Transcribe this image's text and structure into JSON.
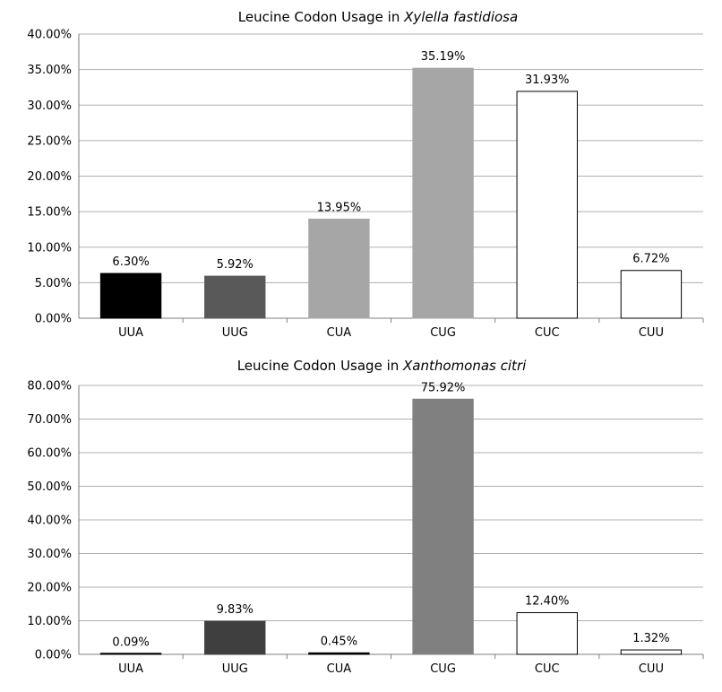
{
  "chart_data": [
    {
      "type": "bar",
      "title_prefix": "Leucine Codon Usage in ",
      "title_italic": "Xylella fastidiosa",
      "categories": [
        "UUA",
        "UUG",
        "CUA",
        "CUG",
        "CUC",
        "CUU"
      ],
      "values": [
        6.3,
        5.92,
        13.95,
        35.19,
        31.93,
        6.72
      ],
      "value_labels": [
        "6.30%",
        "5.92%",
        "13.95%",
        "35.19%",
        "31.93%",
        "6.72%"
      ],
      "bar_colors": [
        "#000000",
        "#595959",
        "#a6a6a6",
        "#a6a6a6",
        "#ffffff",
        "#ffffff"
      ],
      "ylim": [
        0,
        40
      ],
      "yticks": [
        0,
        5,
        10,
        15,
        20,
        25,
        30,
        35,
        40
      ],
      "ytick_labels": [
        "0.00%",
        "5.00%",
        "10.00%",
        "15.00%",
        "20.00%",
        "25.00%",
        "30.00%",
        "35.00%",
        "40.00%"
      ],
      "xlabel": "",
      "ylabel": "",
      "grid": true
    },
    {
      "type": "bar",
      "title_prefix": "Leucine Codon Usage in ",
      "title_italic": "Xanthomonas citri",
      "categories": [
        "UUA",
        "UUG",
        "CUA",
        "CUG",
        "CUC",
        "CUU"
      ],
      "values": [
        0.09,
        9.83,
        0.45,
        75.92,
        12.4,
        1.32
      ],
      "value_labels": [
        "0.09%",
        "9.83%",
        "0.45%",
        "75.92%",
        "12.40%",
        "1.32%"
      ],
      "bar_colors": [
        "#000000",
        "#3f3f3f",
        "#000000",
        "#808080",
        "#ffffff",
        "#ffffff"
      ],
      "ylim": [
        0,
        80
      ],
      "yticks": [
        0,
        10,
        20,
        30,
        40,
        50,
        60,
        70,
        80
      ],
      "ytick_labels": [
        "0.00%",
        "10.00%",
        "20.00%",
        "30.00%",
        "40.00%",
        "50.00%",
        "60.00%",
        "70.00%",
        "80.00%"
      ],
      "xlabel": "",
      "ylabel": "",
      "grid": true
    }
  ]
}
